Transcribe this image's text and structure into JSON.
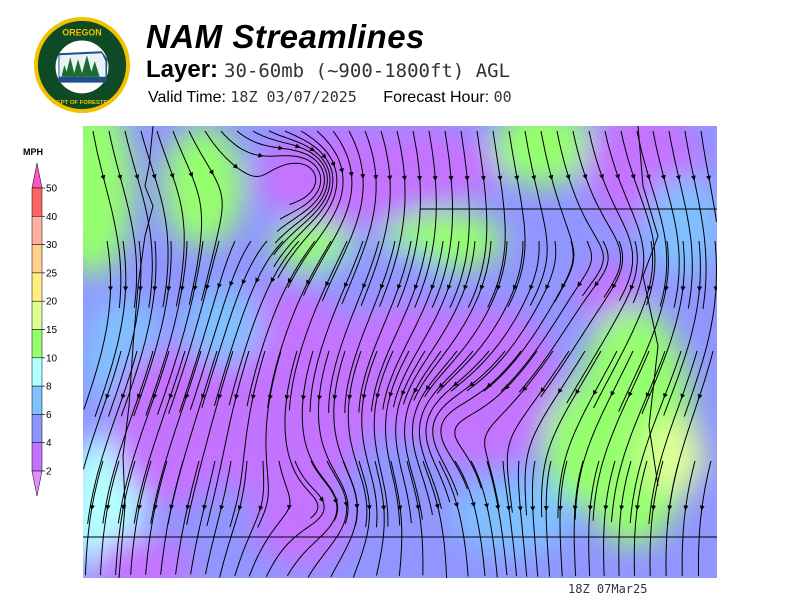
{
  "header": {
    "logo_text_top": "OREGON",
    "logo_text_bottom": "DEPARTMENT OF FORESTRY",
    "title": "NAM Streamlines",
    "layer_label": "Layer:",
    "layer_value": "30-60mb (~900-1800ft) AGL",
    "valid_time_label": "Valid Time:",
    "valid_time_value": "18Z 03/07/2025",
    "forecast_hour_label": "Forecast Hour:",
    "forecast_hour_value": "00"
  },
  "colorbar": {
    "unit": "MPH",
    "ticks": [
      "2",
      "4",
      "6",
      "8",
      "10",
      "15",
      "20",
      "25",
      "30",
      "40",
      "50"
    ],
    "colors": [
      "#c473ff",
      "#9196ff",
      "#80c0ff",
      "#b4ffff",
      "#96ff6e",
      "#dcff96",
      "#ffee82",
      "#ffd08e",
      "#ffb0a0",
      "#ff6464"
    ],
    "over_color": "#ff55c0",
    "under_color": "#e68cff"
  },
  "map": {
    "land_water_colors": {
      "calm": "#c473ff",
      "light": "#9196ff",
      "moderate": "#80c0ff",
      "breezy": "#b4ffff",
      "windy": "#96ff6e",
      "strong": "#dcff96",
      "gust": "#ffee82"
    }
  },
  "footer": {
    "timestamp": "18Z 07Mar25"
  }
}
